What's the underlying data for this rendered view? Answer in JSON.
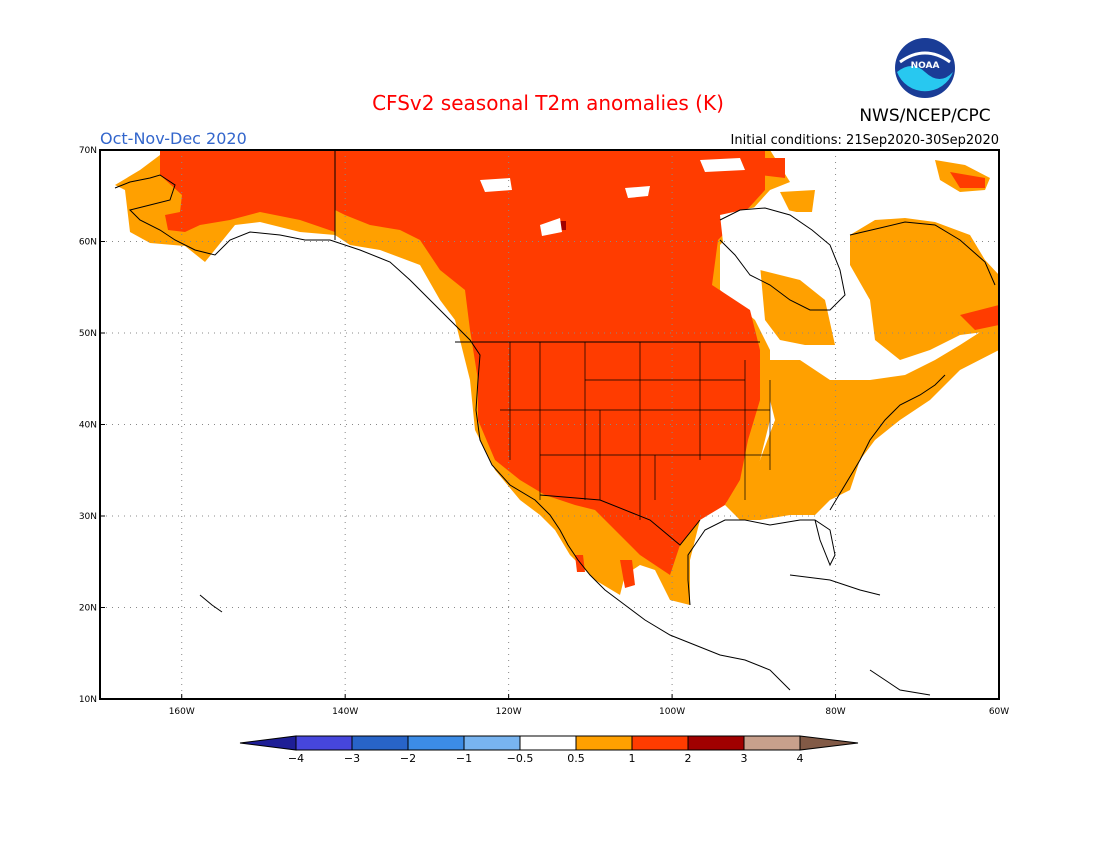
{
  "title": "CFSv2 seasonal T2m anomalies (K)",
  "period": "Oct-Nov-Dec 2020",
  "initial_conditions": "Initial conditions: 21Sep2020-30Sep2020",
  "agency": "NWS/NCEP/CPC",
  "logo_text": "NOAA",
  "map": {
    "lon_range": [
      -170,
      -60
    ],
    "lat_range": [
      10,
      70
    ],
    "lon_ticks": [
      "160W",
      "140W",
      "120W",
      "100W",
      "80W",
      "60W"
    ],
    "lat_ticks": [
      "10N",
      "20N",
      "30N",
      "40N",
      "50N",
      "60N",
      "70N"
    ],
    "grid": "dotted"
  },
  "colors": {
    "title": "#ff0000",
    "period": "#3366cc",
    "above_0_5_to_1": "#ffa000",
    "above_1_to_2": "#ff3c00",
    "above_2_to_3": "#a00000",
    "coast": "#000000"
  },
  "colorbar": {
    "labels": [
      "-4",
      "-3",
      "-2",
      "-1",
      "-0.5",
      "0.5",
      "1",
      "2",
      "3",
      "4"
    ],
    "colors": [
      "#1e1e96",
      "#4646dc",
      "#2864c8",
      "#3c8ce6",
      "#78b4f0",
      "#ffffff",
      "#ffa000",
      "#ff3c00",
      "#a00000",
      "#c8a08c",
      "#825a46"
    ]
  }
}
